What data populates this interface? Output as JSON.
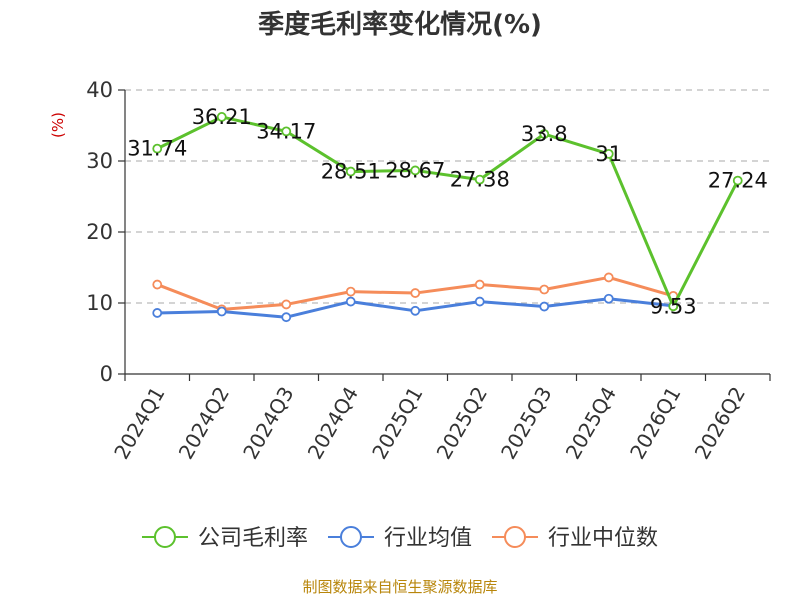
{
  "source_note": "制图数据来自恒生聚源数据库",
  "colors": {
    "title": "#333333",
    "ylabel": "#cc0000",
    "source": "#b8860b",
    "grid": "#bbbbbb",
    "axis": "#333333"
  },
  "chart_data": {
    "type": "line",
    "title": "季度毛利率变化情况(%)",
    "ylabel": "(%)",
    "xlabel": "",
    "categories": [
      "2024Q1",
      "2024Q2",
      "2024Q3",
      "2024Q4",
      "2025Q1",
      "2025Q2",
      "2025Q3",
      "2025Q4",
      "2026Q1",
      "2026Q2"
    ],
    "ylim": [
      0,
      40
    ],
    "yticks": [
      0,
      10,
      20,
      30,
      40
    ],
    "grid": true,
    "legend_position": "bottom",
    "series": [
      {
        "name": "公司毛利率",
        "color": "#5cc12d",
        "show_labels": true,
        "values": [
          31.74,
          36.21,
          34.17,
          28.51,
          28.67,
          27.38,
          33.8,
          31,
          9.53,
          27.24
        ],
        "labels": [
          "31.74",
          "36.21",
          "34.17",
          "28.51",
          "28.67",
          "27.38",
          "33.8",
          "31",
          "9.53",
          "27.24"
        ]
      },
      {
        "name": "行业均值",
        "color": "#4a7fdb",
        "show_labels": false,
        "values": [
          8.6,
          8.8,
          8.0,
          10.2,
          8.9,
          10.2,
          9.5,
          10.6,
          9.6,
          null
        ]
      },
      {
        "name": "行业中位数",
        "color": "#f58c5a",
        "show_labels": false,
        "values": [
          12.6,
          9.1,
          9.8,
          11.6,
          11.4,
          12.6,
          11.9,
          13.6,
          11.0,
          null
        ]
      }
    ]
  }
}
